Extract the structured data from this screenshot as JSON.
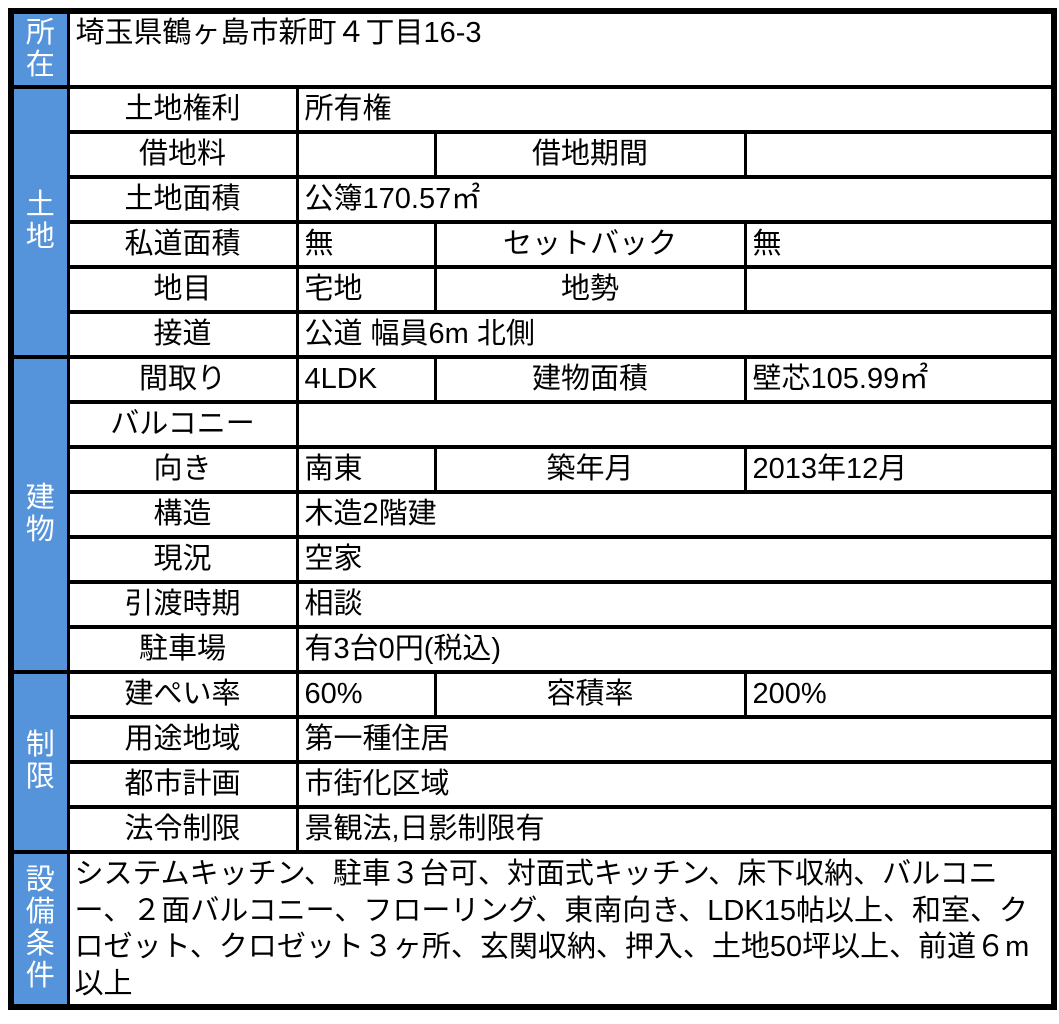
{
  "colors": {
    "section_header_bg": "#5593db",
    "section_header_text": "#ffffff",
    "border": "#000000",
    "cell_bg": "#ffffff",
    "text": "#000000"
  },
  "table": {
    "sections": [
      {
        "label": "所在",
        "rows": [
          [
            "埼玉県鶴ヶ島市新町４丁目16-3"
          ]
        ]
      },
      {
        "label": "土地",
        "rows": [
          [
            "土地権利",
            "所有権"
          ],
          [
            "借地料",
            "",
            "借地期間",
            ""
          ],
          [
            "土地面積",
            "公簿170.57㎡"
          ],
          [
            "私道面積",
            "無",
            "セットバック",
            "無"
          ],
          [
            "地目",
            "宅地",
            "地勢",
            ""
          ],
          [
            "接道",
            "公道 幅員6m 北側"
          ]
        ]
      },
      {
        "label": "建物",
        "rows": [
          [
            "間取り",
            "4LDK",
            "建物面積",
            "壁芯105.99㎡"
          ],
          [
            "バルコニー",
            ""
          ],
          [
            "向き",
            "南東",
            "築年月",
            "2013年12月"
          ],
          [
            "構造",
            "木造2階建"
          ],
          [
            "現況",
            "空家"
          ],
          [
            "引渡時期",
            "相談"
          ],
          [
            "駐車場",
            "有3台0円(税込)"
          ]
        ]
      },
      {
        "label": "制限",
        "rows": [
          [
            "建ぺい率",
            "60%",
            "容積率",
            "200%"
          ],
          [
            "用途地域",
            "第一種住居"
          ],
          [
            "都市計画",
            "市街化区域"
          ],
          [
            "法令制限",
            "景観法,日影制限有"
          ]
        ]
      },
      {
        "label": "設備条件",
        "rows": [
          [
            "システムキッチン、駐車３台可、対面式キッチン、床下収納、バルコニー、２面バルコニー、フローリング、東南向き、LDK15帖以上、和室、クロゼット、クロゼット３ヶ所、玄関収納、押入、土地50坪以上、前道６m以上"
          ]
        ]
      }
    ]
  }
}
